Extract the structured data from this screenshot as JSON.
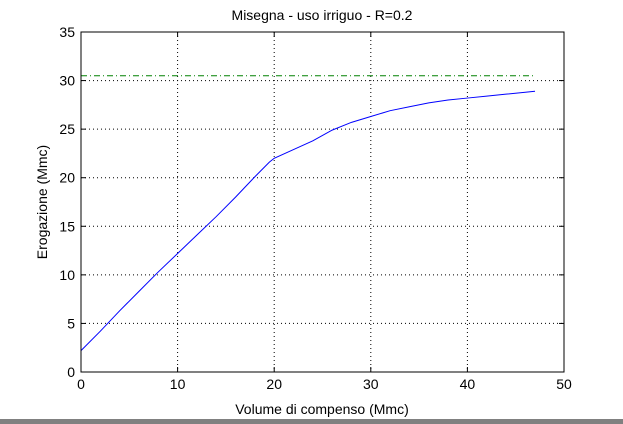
{
  "chart_data": {
    "type": "line",
    "title": "Misegna  -  uso irriguo  -   R=0.2",
    "xlabel": "Volume di compenso (Mmc)",
    "ylabel": "Erogazione (Mmc)",
    "xlim": [
      0,
      50
    ],
    "ylim": [
      0,
      35
    ],
    "xticks": [
      0,
      10,
      20,
      30,
      40,
      50
    ],
    "yticks": [
      0,
      5,
      10,
      15,
      20,
      25,
      30,
      35
    ],
    "grid": true,
    "series": [
      {
        "style": "solid",
        "color": "#0000ff",
        "x": [
          0,
          2,
          4,
          6,
          8,
          10,
          12,
          14,
          16,
          18,
          19.5,
          20,
          22,
          24,
          26,
          28,
          30,
          32,
          34,
          36,
          38,
          40,
          42,
          44,
          46,
          47
        ],
        "y": [
          2.2,
          4.2,
          6.3,
          8.3,
          10.3,
          12.2,
          14.1,
          16.0,
          18.0,
          20.1,
          21.6,
          22.0,
          22.9,
          23.8,
          24.9,
          25.7,
          26.3,
          26.9,
          27.3,
          27.7,
          28.0,
          28.2,
          28.4,
          28.6,
          28.8,
          28.9
        ]
      },
      {
        "style": "dash-dot",
        "color": "#008000",
        "x": [
          0,
          47
        ],
        "y": [
          30.5,
          30.5
        ]
      }
    ]
  }
}
